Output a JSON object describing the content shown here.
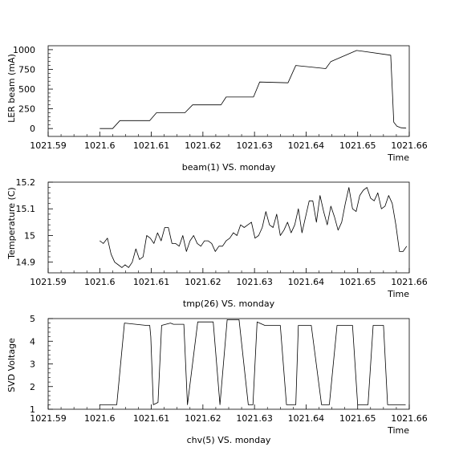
{
  "chart_data": [
    {
      "type": "line",
      "ylabel": "LER beam (mA)",
      "xlabel": "Time",
      "caption": "beam(1) VS. monday",
      "xlim": [
        1021.59,
        1021.66
      ],
      "ylim": [
        -100,
        1050
      ],
      "xticks": [
        1021.59,
        1021.6,
        1021.61,
        1021.62,
        1021.63,
        1021.64,
        1021.65,
        1021.66
      ],
      "xtick_labels": [
        "1021.59",
        "1021.6",
        "1021.61",
        "1021.62",
        "1021.63",
        "1021.64",
        "1021.65",
        "1021.66"
      ],
      "yticks": [
        0,
        250,
        500,
        750,
        1000
      ],
      "ytick_labels": [
        "0",
        "250",
        "500",
        "750",
        "1000"
      ],
      "series": [
        {
          "x": [
            1021.6,
            1021.6025,
            1021.6039,
            1021.6097,
            1021.611,
            1021.6165,
            1021.618,
            1021.6235,
            1021.6245,
            1021.6298,
            1021.631,
            1021.6365,
            1021.638,
            1021.6438,
            1021.6448,
            1021.6498,
            1021.651,
            1021.6564,
            1021.657,
            1021.6576,
            1021.6584,
            1021.6594
          ],
          "y": [
            0,
            0,
            100,
            100,
            200,
            200,
            300,
            300,
            400,
            400,
            590,
            580,
            800,
            760,
            850,
            990,
            980,
            930,
            80,
            30,
            10,
            5
          ]
        }
      ]
    },
    {
      "type": "line",
      "ylabel": "Temperature (C)",
      "xlabel": "Time",
      "caption": "tmp(26) VS. monday",
      "xlim": [
        1021.59,
        1021.66
      ],
      "ylim": [
        14.86,
        15.2
      ],
      "xticks": [
        1021.59,
        1021.6,
        1021.61,
        1021.62,
        1021.63,
        1021.64,
        1021.65,
        1021.66
      ],
      "xtick_labels": [
        "1021.59",
        "1021.6",
        "1021.61",
        "1021.62",
        "1021.63",
        "1021.64",
        "1021.65",
        "1021.66"
      ],
      "yticks": [
        14.9,
        15.0,
        15.1,
        15.2
      ],
      "ytick_labels": [
        "14.9",
        "15",
        "15.1",
        "15.2"
      ],
      "series": [
        {
          "x": [
            1021.6,
            1021.6007,
            1021.6015,
            1021.6022,
            1021.6029,
            1021.6036,
            1021.6043,
            1021.6049,
            1021.6056,
            1021.6063,
            1021.607,
            1021.6077,
            1021.6084,
            1021.6091,
            1021.6098,
            1021.6105,
            1021.6112,
            1021.6119,
            1021.6126,
            1021.6133,
            1021.614,
            1021.6147,
            1021.6154,
            1021.6161,
            1021.6168,
            1021.6175,
            1021.6182,
            1021.6189,
            1021.6196,
            1021.6203,
            1021.621,
            1021.6217,
            1021.6224,
            1021.6231,
            1021.6238,
            1021.6245,
            1021.6252,
            1021.6259,
            1021.6266,
            1021.6273,
            1021.628,
            1021.6287,
            1021.6294,
            1021.6301,
            1021.6308,
            1021.6315,
            1021.6322,
            1021.6329,
            1021.6336,
            1021.6343,
            1021.635,
            1021.6357,
            1021.6364,
            1021.6371,
            1021.6378,
            1021.6385,
            1021.6392,
            1021.6399,
            1021.6406,
            1021.6413,
            1021.642,
            1021.6427,
            1021.6434,
            1021.6441,
            1021.6448,
            1021.6455,
            1021.6462,
            1021.6469,
            1021.6476,
            1021.6483,
            1021.649,
            1021.6497,
            1021.6504,
            1021.6511,
            1021.6518,
            1021.6525,
            1021.6532,
            1021.6539,
            1021.6546,
            1021.6553,
            1021.656,
            1021.6567,
            1021.6574,
            1021.6581,
            1021.6588,
            1021.6595
          ],
          "y": [
            14.98,
            14.97,
            14.99,
            14.93,
            14.9,
            14.89,
            14.88,
            14.89,
            14.88,
            14.9,
            14.95,
            14.91,
            14.92,
            15.0,
            14.99,
            14.97,
            15.01,
            14.98,
            15.03,
            15.03,
            14.97,
            14.97,
            14.96,
            15.0,
            14.94,
            14.98,
            15.0,
            14.97,
            14.96,
            14.98,
            14.98,
            14.97,
            14.94,
            14.96,
            14.96,
            14.98,
            14.99,
            15.01,
            15.0,
            15.04,
            15.03,
            15.04,
            15.05,
            14.99,
            15.0,
            15.03,
            15.09,
            15.04,
            15.03,
            15.08,
            15.0,
            15.02,
            15.05,
            15.01,
            15.04,
            15.1,
            15.01,
            15.07,
            15.13,
            15.13,
            15.05,
            15.15,
            15.09,
            15.04,
            15.11,
            15.07,
            15.02,
            15.05,
            15.12,
            15.18,
            15.1,
            15.09,
            15.15,
            15.17,
            15.18,
            15.14,
            15.13,
            15.16,
            15.1,
            15.11,
            15.15,
            15.12,
            15.04,
            14.94,
            14.94,
            14.96
          ]
        }
      ]
    },
    {
      "type": "line",
      "ylabel": "SVD Voltage",
      "xlabel": "Time",
      "caption": "chv(5) VS. monday",
      "xlim": [
        1021.59,
        1021.66
      ],
      "ylim": [
        1,
        5
      ],
      "xticks": [
        1021.59,
        1021.6,
        1021.61,
        1021.62,
        1021.63,
        1021.64,
        1021.65,
        1021.66
      ],
      "xtick_labels": [
        "1021.59",
        "1021.6",
        "1021.61",
        "1021.62",
        "1021.63",
        "1021.64",
        "1021.65",
        "1021.66"
      ],
      "yticks": [
        1,
        2,
        3,
        4,
        5
      ],
      "ytick_labels": [
        "1",
        "2",
        "3",
        "4",
        "5"
      ],
      "series": [
        {
          "x": [
            1021.6,
            1021.6033,
            1021.6048,
            1021.609,
            1021.6097,
            1021.6099,
            1021.6104,
            1021.6113,
            1021.612,
            1021.6137,
            1021.6143,
            1021.6163,
            1021.617,
            1021.619,
            1021.6198,
            1021.6202,
            1021.622,
            1021.6233,
            1021.6247,
            1021.6255,
            1021.6262,
            1021.627,
            1021.6288,
            1021.6297,
            1021.6305,
            1021.632,
            1021.633,
            1021.635,
            1021.6362,
            1021.638,
            1021.6385,
            1021.64,
            1021.641,
            1021.643,
            1021.6445,
            1021.646,
            1021.647,
            1021.649,
            1021.65,
            1021.652,
            1021.653,
            1021.655,
            1021.6558,
            1021.6575,
            1021.6593
          ],
          "y": [
            1.2,
            1.2,
            4.8,
            4.7,
            4.7,
            4.2,
            1.2,
            1.3,
            4.7,
            4.8,
            4.75,
            4.75,
            1.2,
            4.85,
            4.85,
            4.85,
            4.85,
            1.2,
            4.95,
            4.95,
            4.95,
            4.95,
            1.2,
            1.2,
            4.85,
            4.7,
            4.7,
            4.7,
            1.2,
            1.2,
            4.7,
            4.7,
            4.7,
            1.2,
            1.2,
            4.7,
            4.7,
            4.7,
            1.2,
            1.2,
            4.7,
            4.7,
            1.2,
            1.2,
            1.2
          ]
        }
      ]
    }
  ]
}
